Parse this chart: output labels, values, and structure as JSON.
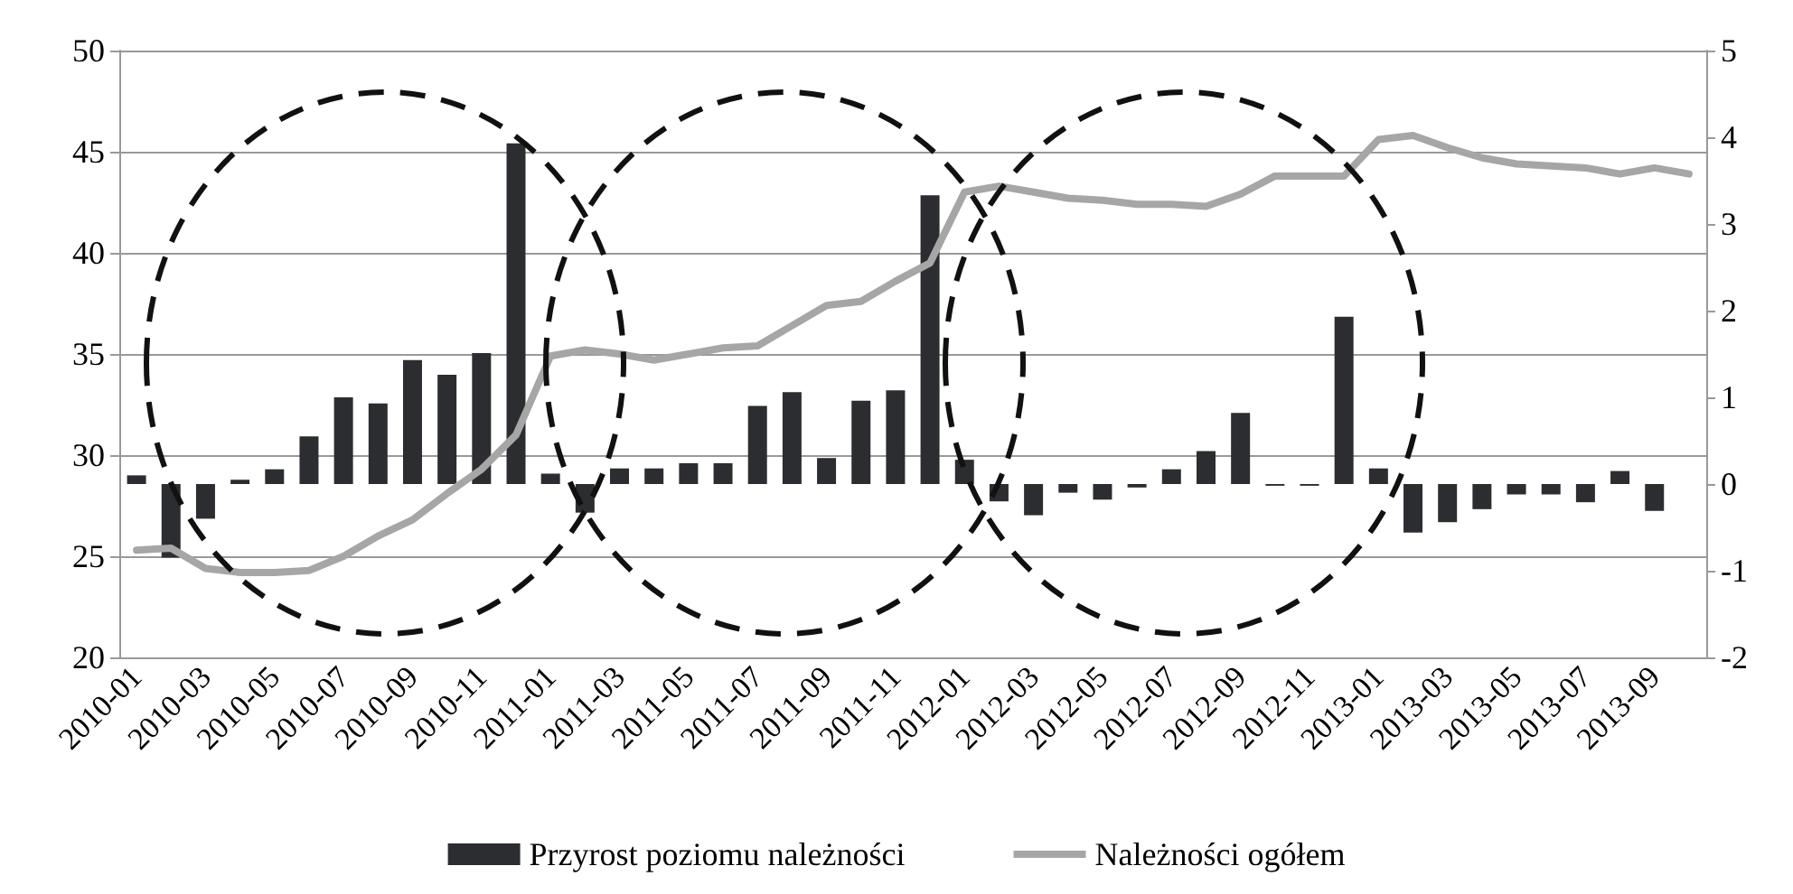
{
  "chart_data": {
    "type": "bar",
    "categories": [
      "2010-01",
      null,
      "2010-03",
      null,
      "2010-05",
      null,
      "2010-07",
      null,
      "2010-09",
      null,
      "2010-11",
      null,
      "2011-01",
      null,
      "2011-03",
      null,
      "2011-05",
      null,
      "2011-07",
      null,
      "2011-09",
      null,
      "2011-11",
      null,
      "2012-01",
      null,
      "2012-03",
      null,
      "2012-05",
      null,
      "2012-07",
      null,
      "2012-09",
      null,
      "2012-11",
      null,
      "2013-01",
      null,
      "2013-03",
      null,
      "2013-05",
      null,
      "2013-07",
      null,
      "2013-09",
      null
    ],
    "series": [
      {
        "name": "Przyrost poziomu należności",
        "axis": "y2",
        "color": "#2b2d30",
        "values": [
          0.1,
          -0.85,
          -0.4,
          0.05,
          0.17,
          0.55,
          1.0,
          0.93,
          1.43,
          1.26,
          1.51,
          3.93,
          0.12,
          -0.33,
          0.18,
          0.18,
          0.24,
          0.24,
          0.9,
          1.06,
          0.3,
          0.96,
          1.08,
          3.33,
          0.28,
          -0.2,
          -0.36,
          -0.1,
          -0.18,
          -0.04,
          0.17,
          0.38,
          0.82,
          -0.02,
          -0.02,
          1.93,
          0.18,
          -0.56,
          -0.44,
          -0.29,
          -0.12,
          -0.12,
          -0.21,
          0.15,
          -0.31,
          null
        ]
      },
      {
        "name": "Należności ogółem",
        "type": "line",
        "color": "#a6a6a6",
        "values": [
          25.3,
          25.4,
          24.4,
          24.2,
          24.2,
          24.3,
          25.0,
          26.0,
          26.8,
          28.1,
          29.3,
          31.0,
          34.9,
          35.2,
          35.0,
          34.7,
          35.0,
          35.3,
          35.4,
          36.4,
          37.4,
          37.6,
          38.6,
          39.5,
          43.0,
          43.3,
          43.0,
          42.7,
          42.6,
          42.4,
          42.4,
          42.3,
          42.9,
          43.8,
          43.8,
          43.8,
          45.6,
          45.8,
          45.2,
          44.7,
          44.4,
          44.3,
          44.2,
          43.9,
          44.2,
          43.9
        ]
      }
    ],
    "ylim": [
      20,
      50
    ],
    "yticks": [
      20,
      25,
      30,
      35,
      40,
      45,
      50
    ],
    "y2lim": [
      -2,
      5
    ],
    "y2ticks": [
      -2,
      -1,
      0,
      1,
      2,
      3,
      4,
      5
    ],
    "grid": "y",
    "legend": "bottom",
    "marker": "none",
    "line_style": "solid"
  }
}
